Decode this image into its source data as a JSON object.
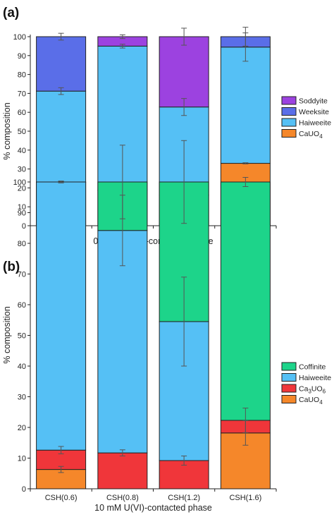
{
  "chart_data": [
    {
      "type": "bar",
      "stacked": true,
      "panel_label": "(a)",
      "xlabel": "0.5 mM U(VI)-contacted phase",
      "ylabel": "% composition",
      "ylim": [
        0,
        100
      ],
      "yticks": [
        "0",
        "10",
        "20",
        "30",
        "40",
        "50",
        "60",
        "70",
        "80",
        "90",
        "100"
      ],
      "categories": [
        "CSH(0.6)",
        "CSH(0.8)",
        "CSH(1.2)",
        "CSH(1.6)"
      ],
      "legend_position": "right",
      "series": [
        {
          "name": "CaUO4",
          "name_sub": "4",
          "name_base": "CaUO",
          "color": "#f5872a",
          "values": [
            23,
            18.8,
            16.2,
            33
          ],
          "err": [
            0.4,
            0.3,
            0.4,
            0.3
          ]
        },
        {
          "name": "Haiweeite",
          "color": "#55c0f5",
          "values": [
            48.2,
            76.2,
            46.6,
            61.5
          ],
          "err": [
            1.8,
            1.0,
            4.5,
            7.5
          ]
        },
        {
          "name": "Weeksite",
          "color": "#5a6ee8",
          "values": [
            28.8,
            0,
            0,
            5.5
          ],
          "err": [
            1.8,
            0,
            0,
            5.0
          ]
        },
        {
          "name": "Soddyite",
          "color": "#9c42e0",
          "values": [
            0,
            5,
            37.2,
            0
          ],
          "err": [
            0,
            1.0,
            4.5,
            0
          ]
        }
      ],
      "legend_order": [
        "Soddyite",
        "Weeksite",
        "Haiweeite",
        "CaUO4"
      ]
    },
    {
      "type": "bar",
      "stacked": true,
      "panel_label": "(b)",
      "xlabel": "10 mM U(VI)-contacted phase",
      "ylabel": "% composition",
      "ylim": [
        0,
        100
      ],
      "yticks": [
        "0",
        "10",
        "20",
        "30",
        "40",
        "50",
        "60",
        "70",
        "80",
        "90",
        "100"
      ],
      "categories": [
        "CSH(0.6)",
        "CSH(0.8)",
        "CSH(1.2)",
        "CSH(1.6)"
      ],
      "legend_position": "right",
      "series": [
        {
          "name": "CaUO4",
          "name_sub": "4",
          "name_base": "CaUO",
          "color": "#f5872a",
          "values": [
            6.3,
            0,
            0,
            18.2
          ],
          "err": [
            1.0,
            0,
            0,
            4.0
          ]
        },
        {
          "name": "Ca3UO6",
          "name_base": "Ca",
          "name_sub": "3",
          "name_rest": "UO",
          "name_sub2": "6",
          "color": "#f0363a",
          "values": [
            6.3,
            11.7,
            9.2,
            4.1
          ],
          "err": [
            1.2,
            1.0,
            1.5,
            4.0
          ]
        },
        {
          "name": "Haiweeite",
          "color": "#55c0f5",
          "values": [
            87.4,
            72.5,
            45.3,
            0
          ],
          "err": [
            0.3,
            11.5,
            14.5,
            0
          ]
        },
        {
          "name": "Coffinite",
          "color": "#1dd48a",
          "values": [
            0,
            15.8,
            45.5,
            77.7
          ],
          "err": [
            0,
            12.0,
            13.5,
            1.5
          ]
        }
      ],
      "legend_order": [
        "Coffinite",
        "Haiweeite",
        "Ca3UO6",
        "CaUO4"
      ]
    }
  ]
}
